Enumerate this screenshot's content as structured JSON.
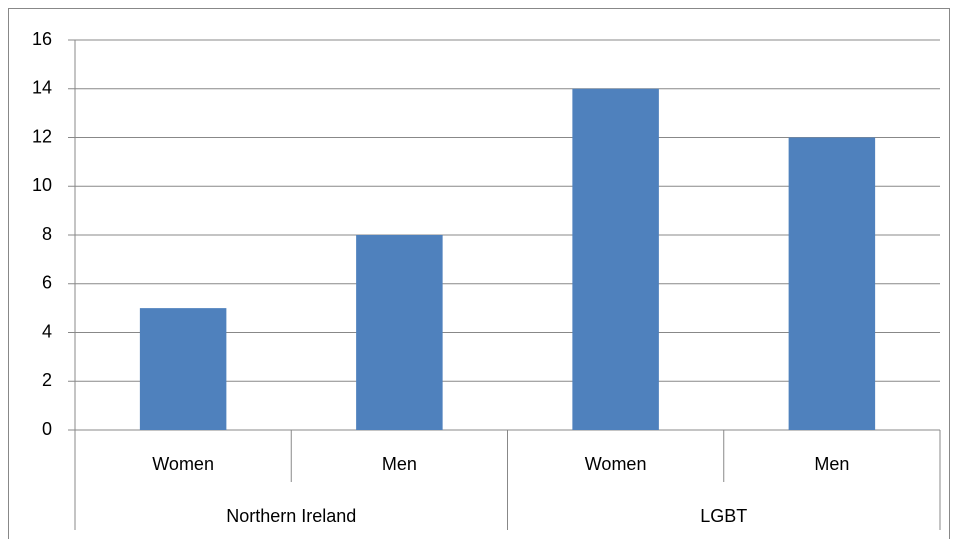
{
  "chart_data": {
    "type": "bar",
    "groups": [
      {
        "name": "Northern Ireland",
        "categories": [
          "Women",
          "Men"
        ],
        "values": [
          5,
          8
        ]
      },
      {
        "name": "LGBT",
        "categories": [
          "Women",
          "Men"
        ],
        "values": [
          14,
          12
        ]
      }
    ],
    "color": "#4f81bd",
    "ylim": [
      0,
      16
    ],
    "yticks": [
      0,
      2,
      4,
      6,
      8,
      10,
      12,
      14,
      16
    ],
    "grid": true
  }
}
